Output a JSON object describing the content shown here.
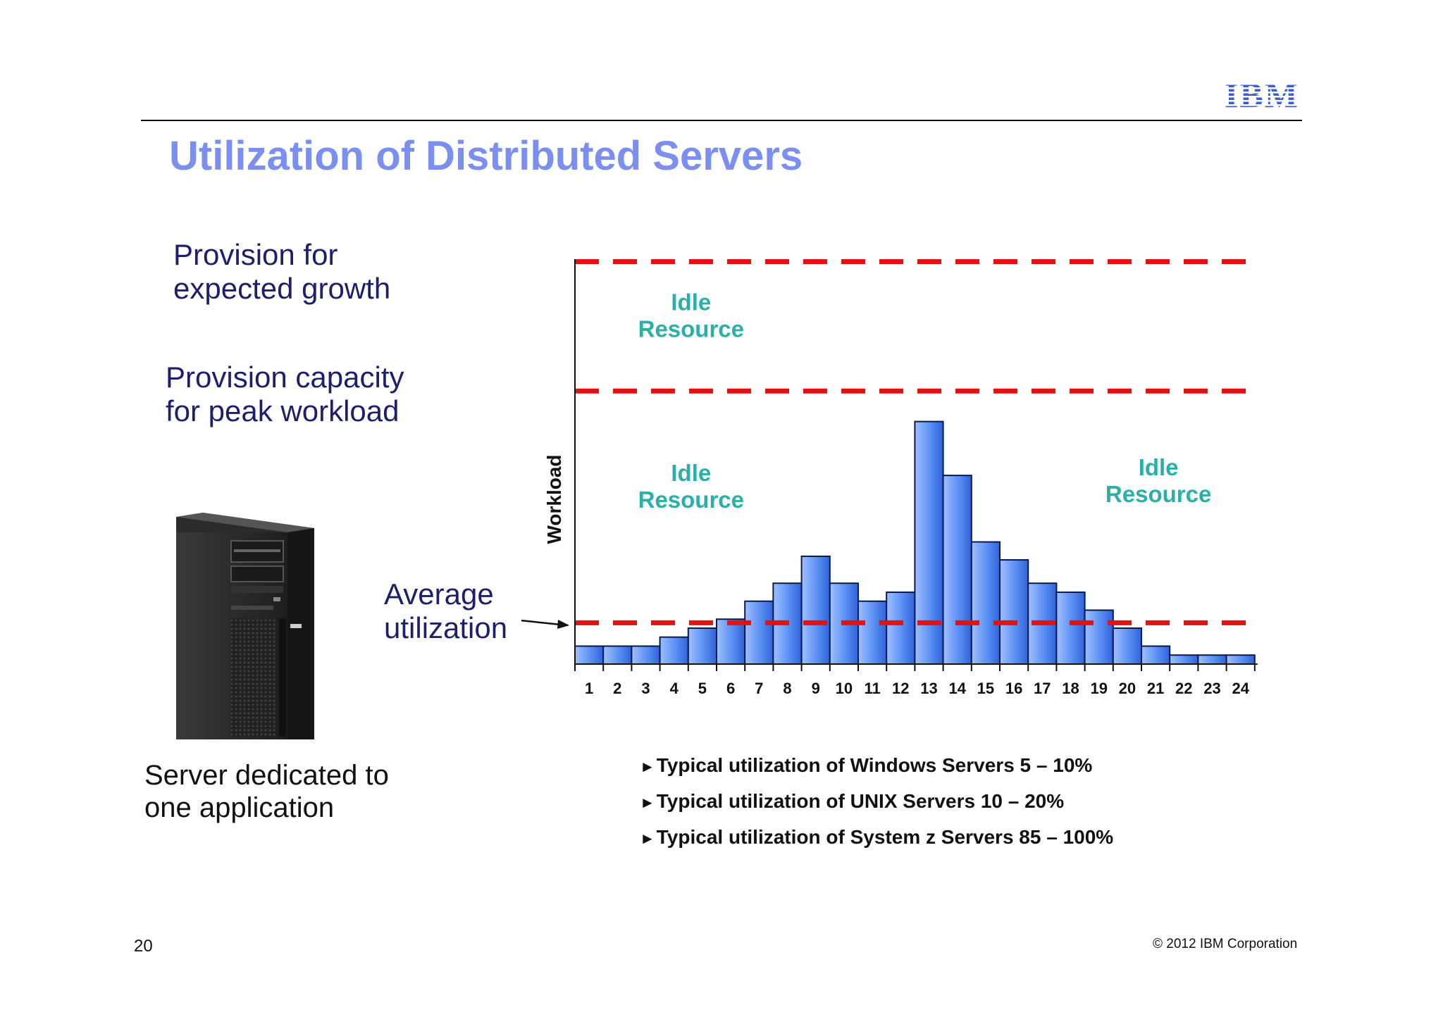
{
  "slide": {
    "title": "Utilization of Distributed Servers",
    "page_number": "20",
    "copyright": "© 2012 IBM Corporation",
    "logo": "IBM"
  },
  "left_labels": {
    "growth": [
      "Provision for",
      "expected growth"
    ],
    "peak": [
      "Provision capacity",
      "for peak workload"
    ],
    "average": [
      "Average",
      "utilization"
    ],
    "server_caption": [
      "Server dedicated to",
      "one application"
    ]
  },
  "notes": [
    "Typical utilization of Windows Servers 5 – 10%",
    "Typical utilization of UNIX Servers 10 – 20%",
    "Typical utilization of System z Servers 85 – 100%"
  ],
  "colors": {
    "title": "#7b8ff0",
    "label_text": "#1b1f6e",
    "idle_text": "#2ab0a8",
    "reference_line": "#e61010",
    "bar_fill": "#5b8ff5",
    "ibm_logo": "#3b5bdb"
  },
  "icons": {
    "server_photo": "tower-server-icon",
    "bullet": "triangle-bullet-icon",
    "arrow": "arrow-right-icon"
  },
  "chart_data": {
    "type": "bar",
    "ylabel": "Workload",
    "xlabel": "",
    "grid": false,
    "categories": [
      "1",
      "2",
      "3",
      "4",
      "5",
      "6",
      "7",
      "8",
      "9",
      "10",
      "11",
      "12",
      "13",
      "14",
      "15",
      "16",
      "17",
      "18",
      "19",
      "20",
      "21",
      "22",
      "23",
      "24"
    ],
    "values": [
      1,
      1,
      1,
      1.5,
      2,
      2.5,
      3.5,
      4.5,
      6,
      4.5,
      3.5,
      4,
      13.5,
      10.5,
      6.8,
      5.8,
      4.5,
      4,
      3,
      2,
      1,
      0.5,
      0.5,
      0.5
    ],
    "ylim": [
      0,
      22.5
    ],
    "reference_lines": [
      {
        "label": "Average utilization",
        "value": 2.3
      },
      {
        "label": "Provision capacity for peak workload",
        "value": 15.2
      },
      {
        "label": "Provision for expected growth",
        "value": 22.4
      }
    ],
    "annotations": [
      {
        "text": [
          "Idle",
          "Resource"
        ],
        "x": 4.6,
        "y": 19.7
      },
      {
        "text": [
          "Idle",
          "Resource"
        ],
        "x": 4.6,
        "y": 10.2
      },
      {
        "text": [
          "Idle",
          "Resource"
        ],
        "x": 21.1,
        "y": 10.5
      }
    ]
  }
}
